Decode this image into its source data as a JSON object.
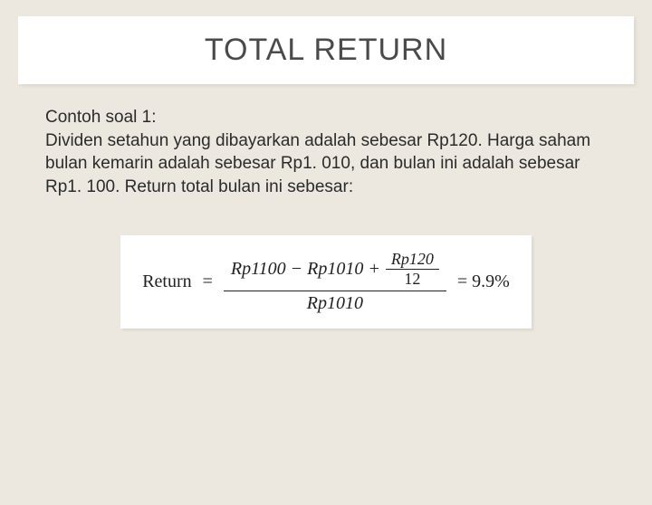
{
  "colors": {
    "background": "#ece8df",
    "card_background": "#ffffff",
    "title_text": "#4a4a4a",
    "body_text": "#2b2b2b",
    "formula_text": "#222222"
  },
  "typography": {
    "title_fontsize": 34,
    "body_fontsize": 19,
    "formula_fontsize": 20,
    "title_font": "Arial",
    "formula_font": "Times New Roman"
  },
  "title": "TOTAL RETURN",
  "body": {
    "line1": "Contoh soal 1:",
    "line2": "Dividen setahun yang dibayarkan adalah sebesar Rp120. Harga saham bulan kemarin adalah sebesar Rp1. 010, dan bulan ini adalah sebesar Rp1. 100. Return total bulan ini sebesar:"
  },
  "formula": {
    "label": "Return",
    "eq": "=",
    "num_left": "Rp1100 − Rp1010 +",
    "inner_num": "Rp120",
    "inner_den": "12",
    "den": "Rp1010",
    "result": "= 9.9%"
  }
}
